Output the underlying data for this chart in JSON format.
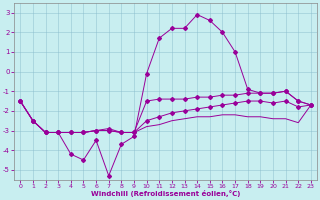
{
  "xlabel": "Windchill (Refroidissement éolien,°C)",
  "bg_color": "#c8eef0",
  "line_color": "#990099",
  "xlim": [
    -0.5,
    23.5
  ],
  "ylim": [
    -5.5,
    3.5
  ],
  "yticks": [
    -5,
    -4,
    -3,
    -2,
    -1,
    0,
    1,
    2,
    3
  ],
  "xticks": [
    0,
    1,
    2,
    3,
    4,
    5,
    6,
    7,
    8,
    9,
    10,
    11,
    12,
    13,
    14,
    15,
    16,
    17,
    18,
    19,
    20,
    21,
    22,
    23
  ],
  "line1_x": [
    0,
    1,
    2,
    3,
    4,
    5,
    6,
    7,
    8,
    9,
    10,
    11,
    12,
    13,
    14,
    15,
    16,
    17,
    18,
    19,
    20,
    21,
    22,
    23
  ],
  "line1_y": [
    -1.5,
    -2.5,
    -3.1,
    -3.1,
    -4.2,
    -4.5,
    -3.5,
    -5.3,
    -3.7,
    -3.3,
    -0.1,
    1.7,
    2.2,
    2.2,
    2.9,
    2.6,
    2.0,
    1.0,
    -0.9,
    -1.1,
    -1.1,
    -1.0,
    -1.5,
    -1.7
  ],
  "line2_x": [
    0,
    1,
    2,
    3,
    4,
    5,
    6,
    7,
    8,
    9,
    10,
    11,
    12,
    13,
    14,
    15,
    16,
    17,
    18,
    19,
    20,
    21,
    22,
    23
  ],
  "line2_y": [
    -1.5,
    -2.5,
    -3.1,
    -3.1,
    -3.1,
    -3.1,
    -3.0,
    -3.0,
    -3.1,
    -3.1,
    -2.8,
    -2.7,
    -2.5,
    -2.4,
    -2.3,
    -2.3,
    -2.2,
    -2.2,
    -2.3,
    -2.3,
    -2.4,
    -2.4,
    -2.6,
    -1.7
  ],
  "line3_x": [
    0,
    1,
    2,
    3,
    4,
    5,
    6,
    7,
    8,
    9,
    10,
    11,
    12,
    13,
    14,
    15,
    16,
    17,
    18,
    19,
    20,
    21,
    22,
    23
  ],
  "line3_y": [
    -1.5,
    -2.5,
    -3.1,
    -3.1,
    -3.1,
    -3.1,
    -3.0,
    -2.9,
    -3.1,
    -3.1,
    -2.5,
    -2.3,
    -2.1,
    -2.0,
    -1.9,
    -1.8,
    -1.7,
    -1.6,
    -1.5,
    -1.5,
    -1.6,
    -1.5,
    -1.8,
    -1.7
  ],
  "line4_x": [
    0,
    1,
    2,
    3,
    4,
    5,
    6,
    7,
    8,
    9,
    10,
    11,
    12,
    13,
    14,
    15,
    16,
    17,
    18,
    19,
    20,
    21,
    22,
    23
  ],
  "line4_y": [
    -1.5,
    -2.5,
    -3.1,
    -3.1,
    -3.1,
    -3.1,
    -3.0,
    -3.0,
    -3.1,
    -3.1,
    -1.5,
    -1.4,
    -1.4,
    -1.4,
    -1.3,
    -1.3,
    -1.2,
    -1.2,
    -1.1,
    -1.1,
    -1.1,
    -1.0,
    -1.5,
    -1.7
  ]
}
